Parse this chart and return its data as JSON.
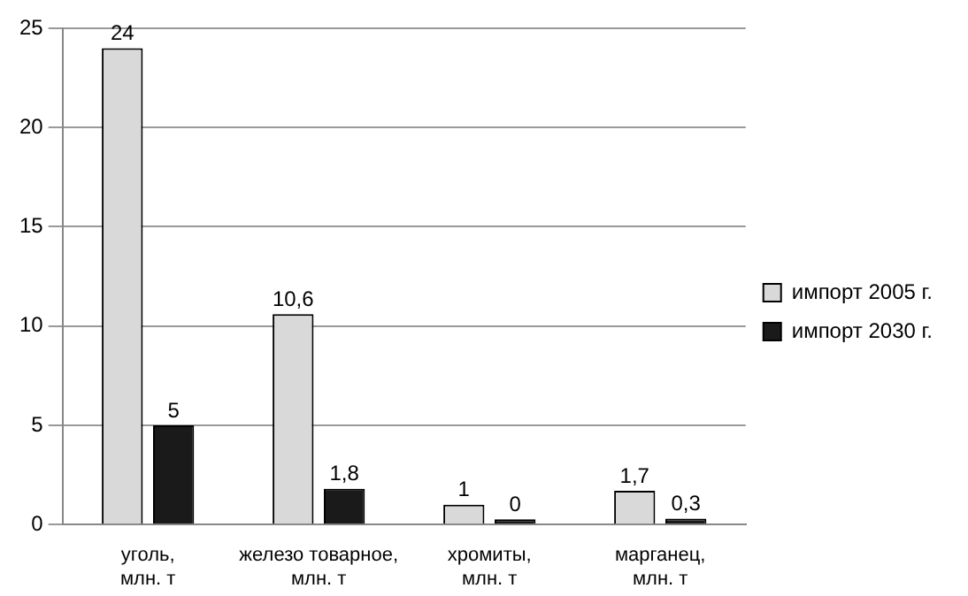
{
  "chart_data": {
    "type": "bar",
    "categories": [
      "уголь, млн. т",
      "железо товарное, млн. т",
      "хромиты, млн. т",
      "марганец, млн. т"
    ],
    "series": [
      {
        "name": "импорт 2005 г.",
        "color": "#d9d9d9",
        "values": [
          24,
          10.6,
          1,
          1.7
        ],
        "value_labels": [
          "24",
          "10,6",
          "1",
          "1,7"
        ]
      },
      {
        "name": "импорт 2030 г.",
        "color": "#1a1a1a",
        "values": [
          5,
          1.8,
          0,
          0.3
        ],
        "value_labels": [
          "5",
          "1,8",
          "0",
          "0,3"
        ]
      }
    ],
    "ylim": [
      0,
      25
    ],
    "yticks": [
      0,
      5,
      10,
      15,
      20,
      25
    ],
    "grid": "y",
    "legend": "right"
  }
}
